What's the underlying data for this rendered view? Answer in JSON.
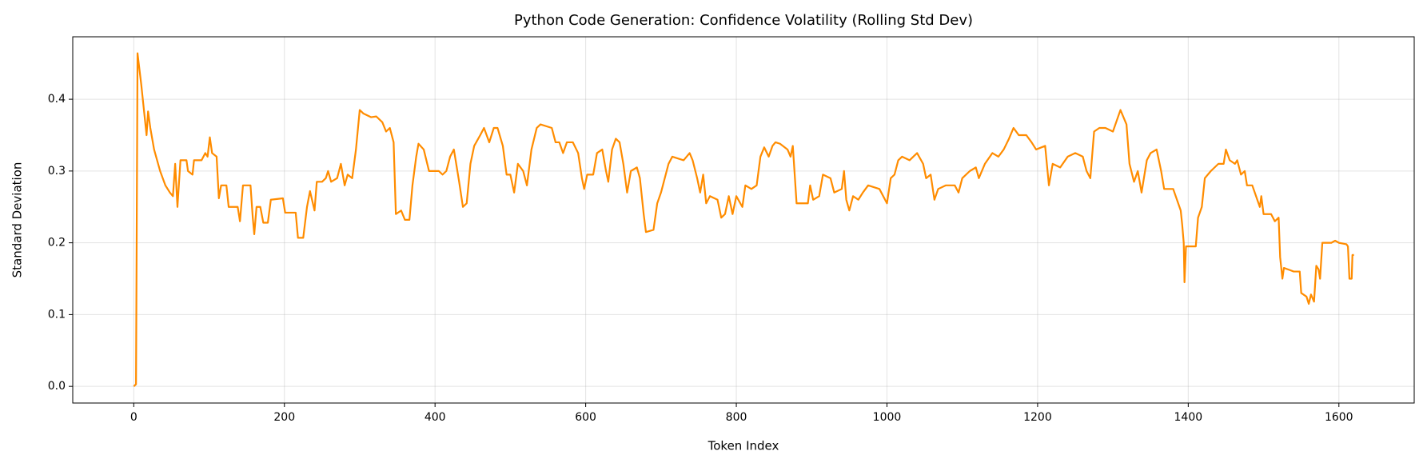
{
  "chart_data": {
    "type": "line",
    "title": "Python Code Generation: Confidence Volatility (Rolling Std Dev)",
    "xlabel": "Token Index",
    "ylabel": "Standard Deviation",
    "color": "#ff8c00",
    "grid": true,
    "xlim": [
      -81,
      1700
    ],
    "ylim": [
      -0.0232,
      0.487
    ],
    "xticks": [
      0,
      200,
      400,
      600,
      800,
      1000,
      1200,
      1400,
      1600
    ],
    "yticks": [
      {
        "value": 0,
        "label": "0.0"
      },
      0.1,
      0.2,
      0.3,
      0.4
    ],
    "x": [
      0,
      3,
      5,
      10,
      15,
      17,
      19,
      22,
      27,
      35,
      42,
      48,
      52,
      55,
      58,
      62,
      70,
      72,
      78,
      80,
      90,
      95,
      98,
      101,
      104,
      110,
      113,
      116,
      123,
      126,
      138,
      141,
      145,
      155,
      158,
      160,
      163,
      168,
      172,
      178,
      182,
      198,
      201,
      215,
      218,
      225,
      230,
      234,
      240,
      243,
      250,
      255,
      258,
      262,
      270,
      275,
      280,
      284,
      290,
      295,
      300,
      305,
      315,
      322,
      330,
      335,
      340,
      345,
      348,
      355,
      360,
      366,
      370,
      375,
      378,
      385,
      392,
      405,
      410,
      415,
      420,
      425,
      432,
      437,
      442,
      447,
      452,
      460,
      465,
      472,
      478,
      483,
      490,
      495,
      500,
      505,
      510,
      517,
      522,
      528,
      535,
      540,
      555,
      560,
      565,
      570,
      575,
      583,
      590,
      595,
      598,
      602,
      610,
      615,
      622,
      627,
      630,
      635,
      640,
      645,
      650,
      655,
      660,
      668,
      672,
      677,
      680,
      690,
      695,
      700,
      705,
      710,
      715,
      730,
      738,
      742,
      748,
      752,
      756,
      760,
      765,
      775,
      780,
      785,
      790,
      795,
      800,
      808,
      812,
      820,
      827,
      832,
      837,
      843,
      848,
      852,
      858,
      868,
      872,
      875,
      880,
      895,
      898,
      902,
      910,
      915,
      925,
      930,
      940,
      943,
      946,
      950,
      955,
      962,
      968,
      975,
      990,
      1000,
      1005,
      1010,
      1015,
      1020,
      1030,
      1040,
      1048,
      1052,
      1058,
      1063,
      1068,
      1078,
      1090,
      1095,
      1100,
      1110,
      1118,
      1122,
      1130,
      1140,
      1148,
      1155,
      1162,
      1168,
      1175,
      1185,
      1192,
      1198,
      1210,
      1215,
      1220,
      1230,
      1240,
      1250,
      1260,
      1265,
      1270,
      1275,
      1282,
      1290,
      1300,
      1310,
      1318,
      1322,
      1328,
      1333,
      1338,
      1345,
      1350,
      1358,
      1364,
      1368,
      1380,
      1390,
      1392,
      1394,
      1395,
      1397,
      1410,
      1413,
      1418,
      1422,
      1430,
      1440,
      1447,
      1450,
      1455,
      1462,
      1465,
      1470,
      1475,
      1478,
      1485,
      1490,
      1495,
      1497,
      1500,
      1510,
      1515,
      1520,
      1522,
      1525,
      1527,
      1535,
      1540,
      1548,
      1550,
      1557,
      1560,
      1563,
      1567,
      1570,
      1573,
      1575,
      1578,
      1590,
      1595,
      1600,
      1610,
      1612,
      1614,
      1617,
      1618,
      1620
    ],
    "values": [
      0.0,
      0.003,
      0.464,
      0.42,
      0.37,
      0.35,
      0.383,
      0.36,
      0.33,
      0.3,
      0.28,
      0.27,
      0.265,
      0.31,
      0.25,
      0.315,
      0.315,
      0.3,
      0.295,
      0.315,
      0.315,
      0.325,
      0.32,
      0.347,
      0.325,
      0.32,
      0.262,
      0.28,
      0.28,
      0.25,
      0.25,
      0.23,
      0.28,
      0.28,
      0.235,
      0.212,
      0.25,
      0.25,
      0.228,
      0.228,
      0.26,
      0.262,
      0.242,
      0.242,
      0.207,
      0.207,
      0.25,
      0.272,
      0.245,
      0.285,
      0.285,
      0.29,
      0.3,
      0.285,
      0.29,
      0.31,
      0.28,
      0.295,
      0.29,
      0.33,
      0.385,
      0.38,
      0.375,
      0.376,
      0.368,
      0.355,
      0.36,
      0.34,
      0.24,
      0.245,
      0.232,
      0.232,
      0.28,
      0.32,
      0.338,
      0.33,
      0.3,
      0.3,
      0.295,
      0.3,
      0.32,
      0.33,
      0.285,
      0.25,
      0.255,
      0.31,
      0.335,
      0.35,
      0.36,
      0.34,
      0.36,
      0.36,
      0.335,
      0.295,
      0.295,
      0.27,
      0.31,
      0.3,
      0.28,
      0.33,
      0.36,
      0.365,
      0.36,
      0.34,
      0.34,
      0.325,
      0.34,
      0.34,
      0.325,
      0.29,
      0.275,
      0.295,
      0.295,
      0.325,
      0.33,
      0.3,
      0.285,
      0.33,
      0.345,
      0.34,
      0.31,
      0.27,
      0.3,
      0.305,
      0.29,
      0.24,
      0.215,
      0.218,
      0.255,
      0.27,
      0.29,
      0.31,
      0.32,
      0.315,
      0.325,
      0.315,
      0.29,
      0.27,
      0.295,
      0.255,
      0.265,
      0.26,
      0.235,
      0.24,
      0.265,
      0.24,
      0.265,
      0.25,
      0.28,
      0.275,
      0.28,
      0.32,
      0.333,
      0.32,
      0.335,
      0.34,
      0.338,
      0.33,
      0.32,
      0.335,
      0.255,
      0.255,
      0.28,
      0.26,
      0.265,
      0.295,
      0.29,
      0.27,
      0.275,
      0.3,
      0.26,
      0.245,
      0.265,
      0.26,
      0.27,
      0.28,
      0.275,
      0.255,
      0.29,
      0.295,
      0.315,
      0.32,
      0.315,
      0.325,
      0.31,
      0.29,
      0.295,
      0.26,
      0.275,
      0.28,
      0.28,
      0.27,
      0.29,
      0.3,
      0.305,
      0.29,
      0.31,
      0.325,
      0.32,
      0.33,
      0.345,
      0.36,
      0.35,
      0.35,
      0.34,
      0.33,
      0.335,
      0.28,
      0.31,
      0.305,
      0.32,
      0.325,
      0.32,
      0.3,
      0.29,
      0.355,
      0.36,
      0.36,
      0.355,
      0.385,
      0.365,
      0.31,
      0.285,
      0.3,
      0.27,
      0.315,
      0.325,
      0.33,
      0.3,
      0.275,
      0.275,
      0.245,
      0.225,
      0.2,
      0.145,
      0.195,
      0.195,
      0.235,
      0.25,
      0.29,
      0.3,
      0.31,
      0.31,
      0.33,
      0.315,
      0.31,
      0.315,
      0.295,
      0.3,
      0.28,
      0.28,
      0.265,
      0.25,
      0.265,
      0.24,
      0.24,
      0.23,
      0.235,
      0.18,
      0.15,
      0.165,
      0.162,
      0.16,
      0.16,
      0.13,
      0.125,
      0.115,
      0.128,
      0.118,
      0.168,
      0.163,
      0.15,
      0.2,
      0.2,
      0.203,
      0.2,
      0.198,
      0.195,
      0.15,
      0.15,
      0.183,
      0.183
    ]
  }
}
